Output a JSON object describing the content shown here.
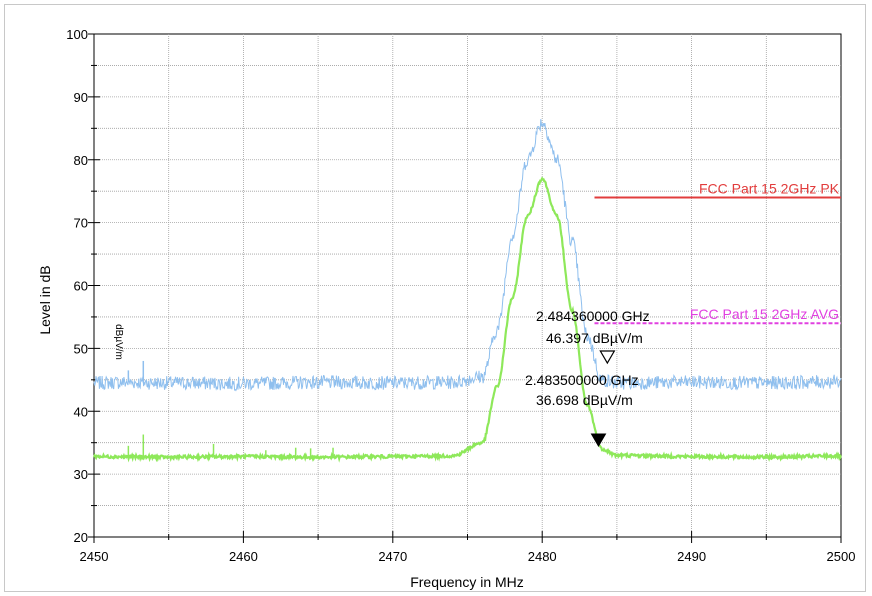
{
  "chart_data": {
    "type": "line",
    "title": "",
    "xlabel": "Frequency in MHz",
    "ylabel": "Level in dB",
    "xlim": [
      2450,
      2500
    ],
    "ylim": [
      20,
      100
    ],
    "x_ticks": [
      "2450",
      "2460",
      "2470",
      "2480",
      "2490",
      "2500"
    ],
    "y_ticks": [
      "20",
      "30",
      "40",
      "50",
      "60",
      "70",
      "80",
      "90",
      "100"
    ],
    "grid": true,
    "series": [
      {
        "color": "#8fbfee",
        "x": [
          2450,
          2452,
          2455,
          2460,
          2465,
          2470,
          2474,
          2476,
          2477,
          2478,
          2479,
          2480,
          2481,
          2482,
          2483,
          2484,
          2485,
          2490,
          2495,
          2500
        ],
        "y": [
          44.5,
          44.6,
          44.5,
          44.4,
          44.6,
          44.5,
          44.6,
          45.5,
          53,
          68,
          80,
          86,
          80,
          67,
          52,
          45,
          44.5,
          44.6,
          44.5,
          44.7
        ]
      },
      {
        "color": "#8ee85a",
        "x": [
          2450,
          2455,
          2460,
          2465,
          2470,
          2474,
          2476,
          2477,
          2478,
          2479,
          2480,
          2481,
          2482,
          2483,
          2484,
          2485,
          2490,
          2495,
          2500
        ],
        "y": [
          32.8,
          32.7,
          32.8,
          32.7,
          32.8,
          32.9,
          35,
          44,
          58,
          71,
          77,
          71,
          56,
          41,
          34,
          33,
          32.8,
          32.7,
          32.9
        ]
      }
    ],
    "spurs": [
      {
        "x": 2452.3,
        "y": 46.5,
        "series": 0
      },
      {
        "x": 2453.3,
        "y": 48,
        "series": 0
      },
      {
        "x": 2452.3,
        "y": 34.5,
        "series": 1
      },
      {
        "x": 2453.3,
        "y": 36.3,
        "series": 1
      },
      {
        "x": 2458,
        "y": 34.8,
        "series": 1
      },
      {
        "x": 2461.5,
        "y": 33.8,
        "series": 1
      },
      {
        "x": 2463.5,
        "y": 34.2,
        "series": 1
      },
      {
        "x": 2464.5,
        "y": 34.1,
        "series": 1
      },
      {
        "x": 2466,
        "y": 34.2,
        "series": 1
      }
    ],
    "limit_lines": [
      {
        "label": "FCC Part 15 2GHz  PK",
        "y": 74,
        "x_start": 2483.5,
        "x_end": 2500,
        "color": "#e23c3c"
      },
      {
        "label": "FCC Part 15 2GHz  AVG",
        "y": 54,
        "x_start": 2483.5,
        "x_end": 2500,
        "color": "#e040e0"
      }
    ],
    "markers": [
      {
        "freq": "2.484360000 GHz",
        "level": "46.397 dBµV/m",
        "x": 2484.36,
        "y": 46.397,
        "symbol": "open-triangle"
      },
      {
        "freq": "2.483500000 GHz",
        "level": "36.698 dBµV/m",
        "x": 2483.5,
        "y": 36.698,
        "symbol": "filled-triangle"
      }
    ],
    "unit_label": "dBµV/m"
  }
}
